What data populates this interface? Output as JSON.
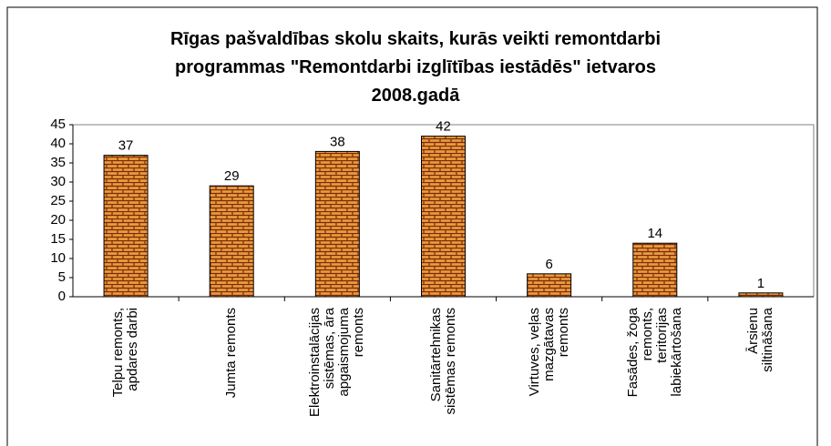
{
  "chart_data": {
    "type": "bar",
    "title": "Rīgas pašvaldības skolu skaits, kurās veikti remontdarbi\nprogrammas \"Remontdarbi izglītības iestādēs\" ietvaros\n2008.gadā",
    "categories": [
      "Telpu remonts,\napdares darbi",
      "Jumta remonts",
      "Elektroinstalācijas\nsistēmas, āra\napgaismojuma\nremonts",
      "Sanitārtehnikas\nsistēmas remonts",
      "Virtuves, veļas\nmazgātavas\nremonts",
      "Fasādes, žoga\nremonts,\nteritorijas\nlabiekārtošana",
      "Ārsienu\nsiltināšana"
    ],
    "values": [
      37,
      29,
      38,
      42,
      6,
      14,
      1
    ],
    "color": "#e89a3c",
    "ylim": [
      0,
      45
    ],
    "yticks": [
      0,
      5,
      10,
      15,
      20,
      25,
      30,
      35,
      40,
      45
    ],
    "grid": false
  }
}
